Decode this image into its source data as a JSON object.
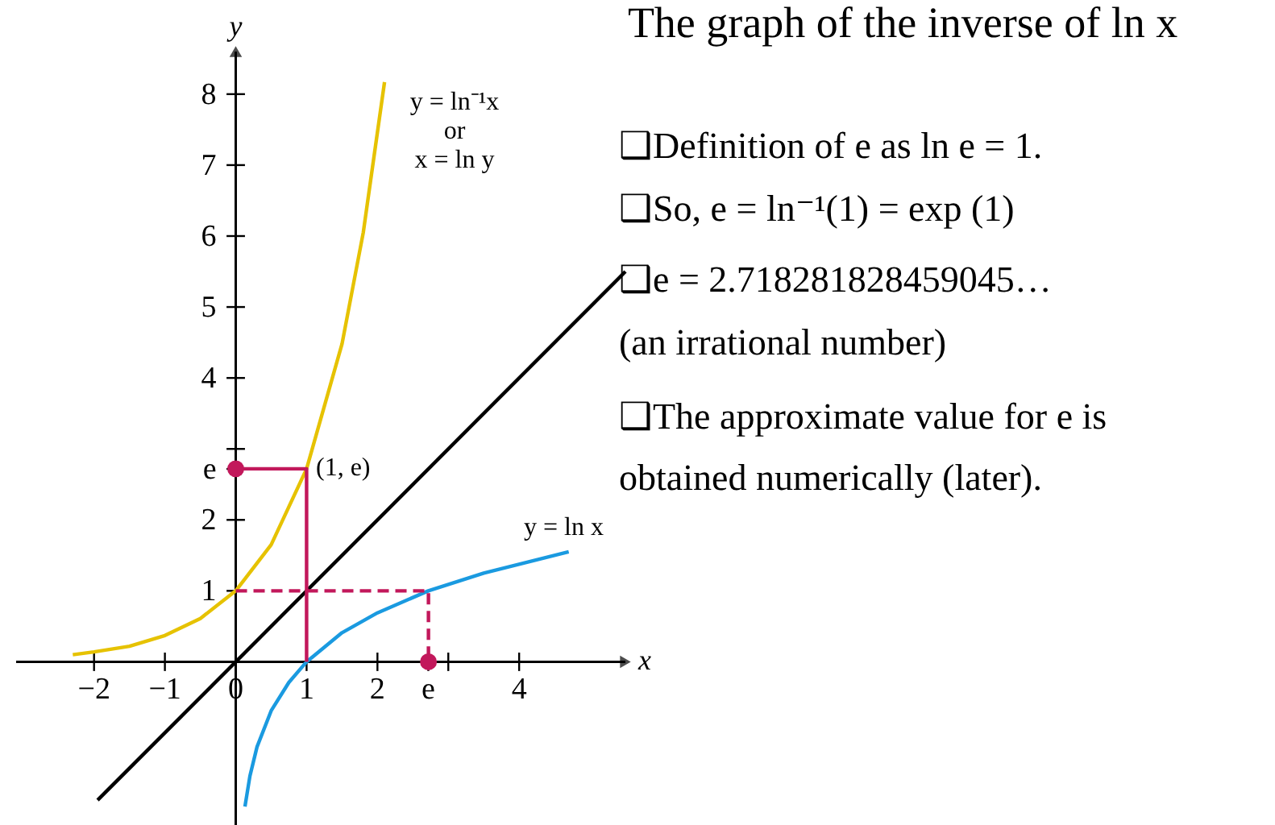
{
  "chart_data": {
    "type": "line",
    "title": "The graph of the inverse of ln x",
    "xlabel": "x",
    "ylabel": "y",
    "xlim": [
      -3.1,
      5.5
    ],
    "ylim": [
      -2.3,
      8.6
    ],
    "xticks": [
      -2,
      -1,
      0,
      1,
      2,
      {
        "value": 2.718,
        "label": "e"
      },
      {
        "value": 3,
        "label": null
      },
      4
    ],
    "yticks": [
      1,
      2,
      {
        "value": 2.718,
        "label": "e"
      },
      {
        "value": 3,
        "label": null
      },
      4,
      5,
      6,
      7,
      8
    ],
    "series": [
      {
        "color": "#e6c200",
        "x": [
          -2.3,
          -2,
          -1.5,
          -1,
          -0.5,
          0,
          0.5,
          1,
          1.5,
          1.8,
          2.1
        ],
        "values": [
          0.1,
          0.14,
          0.22,
          0.37,
          0.61,
          1,
          1.65,
          2.72,
          4.48,
          6.05,
          8.17
        ]
      },
      {
        "color": "#1a9ae0",
        "x": [
          0.13,
          0.2,
          0.3,
          0.5,
          0.75,
          1,
          1.5,
          2,
          2.718,
          3.5,
          4.7
        ],
        "values": [
          -2.04,
          -1.61,
          -1.2,
          -0.69,
          -0.29,
          0,
          0.41,
          0.69,
          1,
          1.25,
          1.55
        ]
      },
      {
        "color": "#000000",
        "x": [
          -1.95,
          5.5
        ],
        "values": [
          -1.95,
          5.5
        ]
      },
      {
        "color": "#c2185b",
        "x": [
          1,
          1,
          0.1
        ],
        "values": [
          0,
          2.72,
          2.72
        ]
      },
      {
        "color": "#c2185b",
        "x": [
          0,
          2.72,
          2.72
        ],
        "values": [
          1,
          1,
          0.1
        ],
        "line_style": "dashed"
      },
      {
        "type": "scatter",
        "marker": "circle",
        "color": "#c2185b",
        "x": [
          0,
          2.72
        ],
        "values": [
          2.72,
          0
        ]
      }
    ],
    "annotations": [
      "y = ln⁻¹x\nor\nx = ln y",
      "(1, e)",
      "y = ln x",
      "❑Definition of e as ln e = 1.",
      "❑So, e = ln⁻¹(1) = exp (1)",
      "❑e = 2.718281828459045…",
      "      (an irrational number)",
      "❑The approximate value for e is",
      "obtained numerically (later)."
    ]
  }
}
